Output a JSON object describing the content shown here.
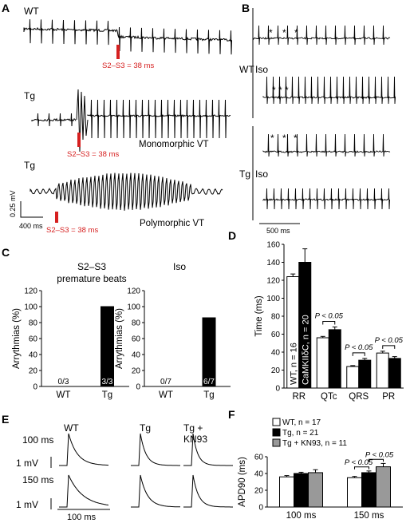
{
  "panels": {
    "A": {
      "label": "A",
      "trace_labels": [
        "WT",
        "Tg",
        "Tg"
      ],
      "s2s3": [
        "S2–S3 = 38 ms",
        "S2–S3 = 38 ms",
        "S2–S3 = 38 ms"
      ],
      "annotations": [
        "Monomorphic VT",
        "Polymorphic VT"
      ],
      "scale_v": "0.25 mV",
      "scale_t": "400 ms"
    },
    "B": {
      "label": "B",
      "group_wt": "WT",
      "group_tg": "Tg",
      "iso": [
        "Iso",
        "Iso"
      ],
      "scale_t": "500 ms"
    },
    "C": {
      "label": "C"
    },
    "D": {
      "label": "D"
    },
    "E": {
      "label": "E",
      "cols": [
        "WT",
        "Tg",
        "Tg +",
        "KN93"
      ],
      "rows": [
        "100 ms",
        "150 ms"
      ],
      "mv": [
        "1 mV",
        "1 mV"
      ],
      "scale_t": "100 ms"
    },
    "F": {
      "label": "F"
    }
  },
  "chart_data": [
    {
      "panel": "C-left",
      "type": "bar",
      "title": "S2–S3\npremature beats",
      "ylabel": "Arrythmias (%)",
      "categories": [
        "WT",
        "Tg"
      ],
      "values": [
        0,
        100
      ],
      "data_labels": [
        "0/3",
        "3/3"
      ],
      "colors": [
        "#ffffff",
        "#000000"
      ],
      "ylim": [
        0,
        120
      ],
      "yticks": [
        0,
        20,
        40,
        60,
        80,
        100,
        120
      ]
    },
    {
      "panel": "C-right",
      "type": "bar",
      "title": "Iso",
      "ylabel": "Arrythmias (%)",
      "categories": [
        "WT",
        "Tg"
      ],
      "values": [
        0,
        86
      ],
      "data_labels": [
        "0/7",
        "6/7"
      ],
      "colors": [
        "#ffffff",
        "#000000"
      ],
      "ylim": [
        0,
        120
      ],
      "yticks": [
        0,
        20,
        40,
        60,
        80,
        100,
        120
      ]
    },
    {
      "panel": "D",
      "type": "bar",
      "ylabel": "Time (ms)",
      "categories": [
        "RR",
        "QTc",
        "QRS",
        "PR"
      ],
      "ylim": [
        0,
        160
      ],
      "yticks": [
        0,
        20,
        40,
        60,
        80,
        100,
        120,
        140,
        160
      ],
      "series": [
        {
          "name": "WT, n = 16",
          "color": "#ffffff",
          "values": [
            124,
            56,
            24,
            39
          ],
          "errors": [
            3,
            1.5,
            1,
            2
          ]
        },
        {
          "name": "CaMKIIδC, n = 20",
          "color": "#000000",
          "values": [
            140,
            65,
            31,
            33
          ],
          "errors": [
            15,
            3,
            2,
            2
          ]
        }
      ],
      "significance": [
        {
          "category": "QTc",
          "text": "P < 0.05"
        },
        {
          "category": "QRS",
          "text": "P < 0.05"
        },
        {
          "category": "PR",
          "text": "P < 0.05"
        }
      ]
    },
    {
      "panel": "F",
      "type": "bar",
      "ylabel": "APD90 (ms)",
      "categories": [
        "100 ms",
        "150 ms"
      ],
      "ylim": [
        0,
        60
      ],
      "yticks": [
        0,
        20,
        40,
        60
      ],
      "series": [
        {
          "name": "WT, n = 17",
          "color": "#ffffff",
          "values": [
            36,
            35
          ],
          "errors": [
            1.5,
            1.5
          ]
        },
        {
          "name": "Tg, n = 21",
          "color": "#000000",
          "values": [
            40,
            41
          ],
          "errors": [
            1.5,
            2
          ]
        },
        {
          "name": "Tg + KN93, n = 11",
          "color": "#999999",
          "values": [
            41,
            48
          ],
          "errors": [
            3.5,
            4
          ]
        }
      ],
      "significance": [
        {
          "text": "P < 0.05"
        },
        {
          "text": "P < 0.05"
        }
      ]
    }
  ]
}
